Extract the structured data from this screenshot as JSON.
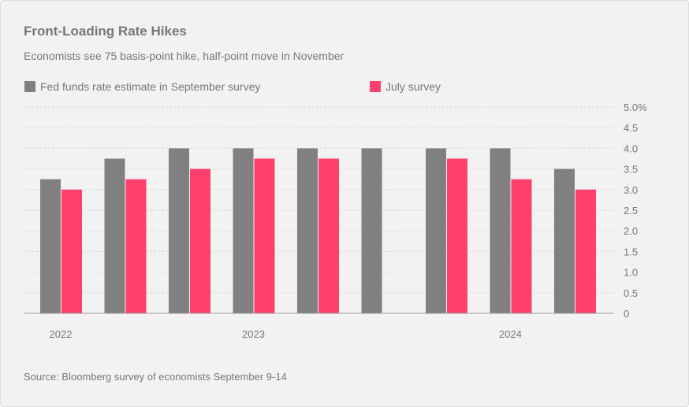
{
  "chart_data": {
    "type": "bar",
    "title": "Front-Loading Rate Hikes",
    "subtitle": "Economists see 75 basis-point hike, half-point move in November",
    "source": "Source: Bloomberg survey of economists September 9-14",
    "categories": [
      "2022",
      "",
      "",
      "2023",
      "",
      "",
      "",
      "2024",
      ""
    ],
    "series": [
      {
        "name": "Fed funds rate estimate in September survey",
        "color": "#808080",
        "values": [
          3.25,
          3.75,
          4.0,
          4.0,
          4.0,
          4.0,
          4.0,
          4.0,
          3.5
        ]
      },
      {
        "name": "July survey",
        "color": "#ff3f6c",
        "values": [
          3.0,
          3.25,
          3.5,
          3.75,
          3.75,
          null,
          3.75,
          3.25,
          3.0
        ]
      }
    ],
    "ylim": [
      0,
      5
    ],
    "yticks": [
      "0",
      "0.5",
      "1.0",
      "1.5",
      "2.0",
      "2.5",
      "3.0",
      "3.5",
      "4.0",
      "4.5",
      "5.0%"
    ],
    "y_axis_side": "right",
    "grid": true,
    "legend": "top-left"
  }
}
